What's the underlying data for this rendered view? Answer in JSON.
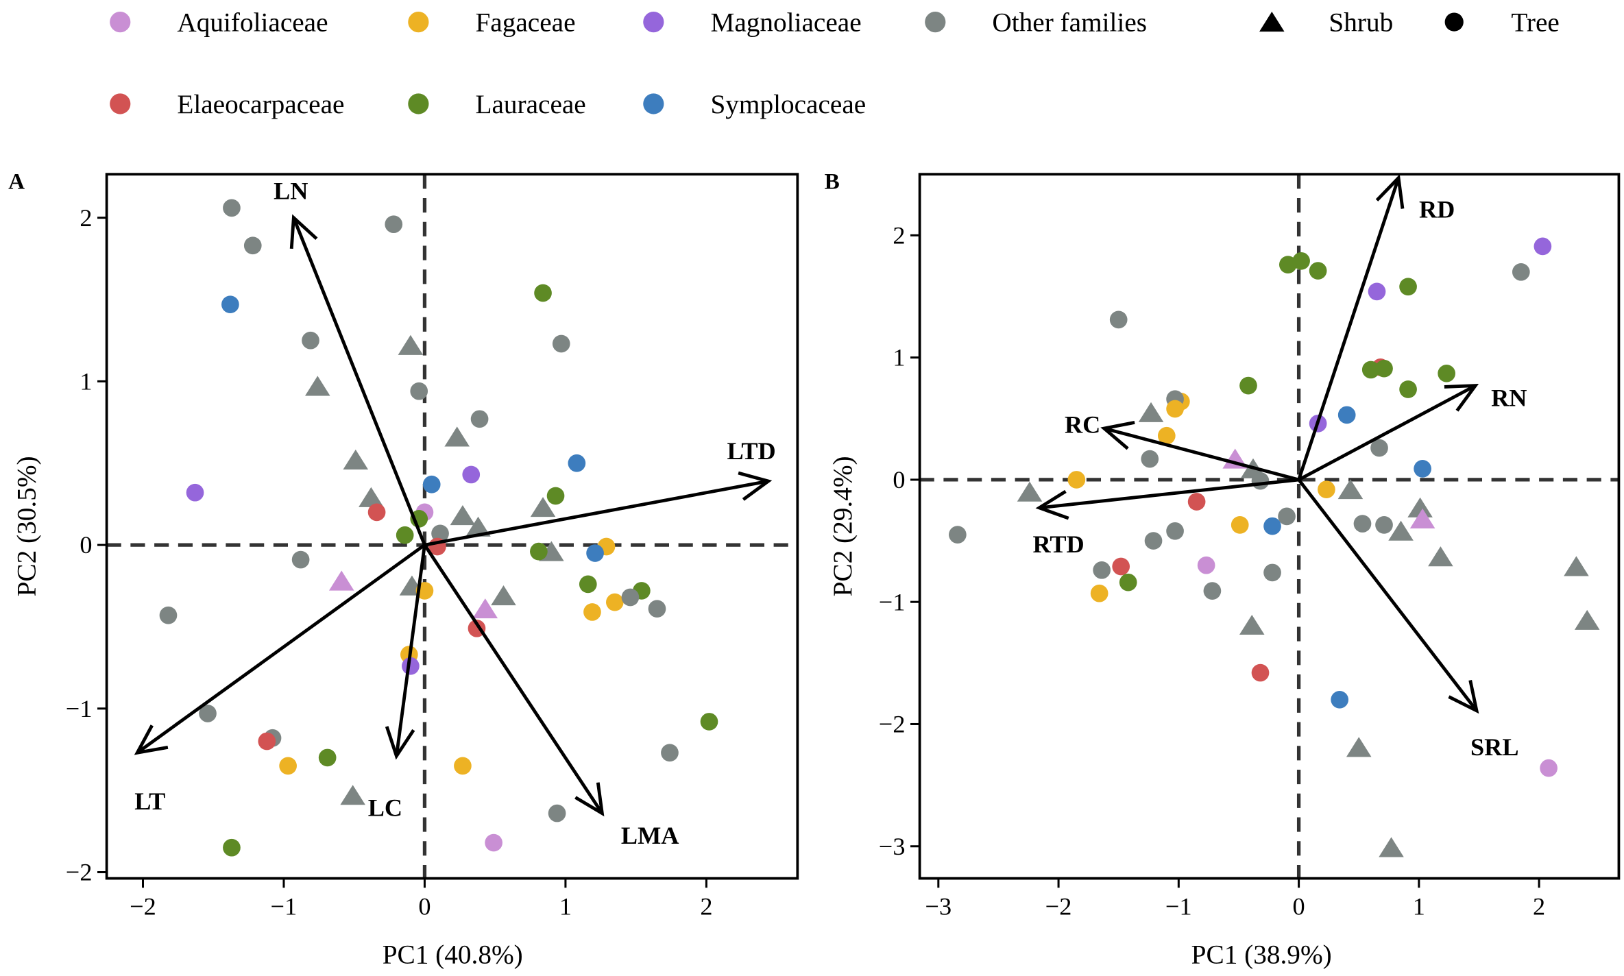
{
  "legend": {
    "families": [
      {
        "key": "Aq",
        "name": "Aquifoliaceae",
        "color": "#C98FD4"
      },
      {
        "key": "Fa",
        "name": "Fagaceae",
        "color": "#EDB224"
      },
      {
        "key": "Ma",
        "name": "Magnoliaceae",
        "color": "#9566DB"
      },
      {
        "key": "Ot",
        "name": "Other families",
        "color": "#7D8583"
      },
      {
        "key": "El",
        "name": "Elaeocarpaceae",
        "color": "#D25353"
      },
      {
        "key": "La",
        "name": "Lauraceae",
        "color": "#5E8A25"
      },
      {
        "key": "Sy",
        "name": "Symplocaceae",
        "color": "#3D7DBE"
      }
    ],
    "shapes": [
      {
        "key": "t",
        "name": "Shrub"
      },
      {
        "key": "c",
        "name": "Tree"
      }
    ]
  },
  "chart_data": [
    {
      "type": "scatter",
      "panel": "A",
      "xlabel": "PC1 (40.8%)",
      "ylabel": "PC2 (30.5%)",
      "xlim": [
        -2.3,
        2.65
      ],
      "ylim": [
        -2.05,
        2.25
      ],
      "xticks": [
        "−2",
        "−1",
        "0",
        "1",
        "2"
      ],
      "xtick_values": [
        -2,
        -1,
        0,
        1,
        2
      ],
      "yticks": [
        "−2",
        "−1",
        "0",
        "1",
        "2"
      ],
      "ytick_values": [
        -2,
        -1,
        0,
        1,
        2
      ],
      "arrows": [
        {
          "label": "LN",
          "x": -0.93,
          "y": 2.0
        },
        {
          "label": "LTD",
          "x": 2.44,
          "y": 0.39
        },
        {
          "label": "LT",
          "x": -2.04,
          "y": -1.27
        },
        {
          "label": "LC",
          "x": -0.2,
          "y": -1.29
        },
        {
          "label": "LMA",
          "x": 1.26,
          "y": -1.64
        }
      ],
      "arrow_label_pos": [
        [
          -0.95,
          2.17
        ],
        [
          2.32,
          0.58
        ],
        [
          -1.95,
          -1.56
        ],
        [
          -0.28,
          -1.6
        ],
        [
          1.6,
          -1.77
        ]
      ],
      "points": [
        [
          -1.37,
          2.06,
          "Ot",
          "c"
        ],
        [
          -1.22,
          1.83,
          "Ot",
          "c"
        ],
        [
          -1.38,
          1.47,
          "Sy",
          "c"
        ],
        [
          -0.22,
          1.96,
          "Ot",
          "c"
        ],
        [
          -0.81,
          1.25,
          "Ot",
          "c"
        ],
        [
          -0.76,
          0.97,
          "Ot",
          "t"
        ],
        [
          -0.1,
          1.22,
          "Ot",
          "t"
        ],
        [
          -0.04,
          0.94,
          "Ot",
          "c"
        ],
        [
          0.39,
          0.77,
          "Ot",
          "c"
        ],
        [
          0.84,
          1.54,
          "La",
          "c"
        ],
        [
          0.97,
          1.23,
          "Ot",
          "c"
        ],
        [
          -0.49,
          0.52,
          "Ot",
          "t"
        ],
        [
          0.23,
          0.66,
          "Ot",
          "t"
        ],
        [
          -1.63,
          0.32,
          "Ma",
          "c"
        ],
        [
          0.33,
          0.43,
          "Ma",
          "c"
        ],
        [
          0.05,
          0.37,
          "Sy",
          "c"
        ],
        [
          1.08,
          0.5,
          "Sy",
          "c"
        ],
        [
          -0.38,
          0.29,
          "Ot",
          "t"
        ],
        [
          -0.34,
          0.2,
          "El",
          "c"
        ],
        [
          0.93,
          0.3,
          "La",
          "c"
        ],
        [
          0.0,
          0.2,
          "Aq",
          "c"
        ],
        [
          -0.04,
          0.16,
          "La",
          "c"
        ],
        [
          -0.14,
          0.06,
          "La",
          "c"
        ],
        [
          0.11,
          0.07,
          "Ot",
          "c"
        ],
        [
          0.27,
          0.18,
          "Ot",
          "t"
        ],
        [
          0.38,
          0.11,
          "Ot",
          "t"
        ],
        [
          0.09,
          -0.01,
          "El",
          "c"
        ],
        [
          0.84,
          0.23,
          "Ot",
          "t"
        ],
        [
          0.9,
          -0.04,
          "Ot",
          "t"
        ],
        [
          0.81,
          -0.04,
          "La",
          "c"
        ],
        [
          1.29,
          -0.01,
          "Fa",
          "c"
        ],
        [
          1.21,
          -0.05,
          "Sy",
          "c"
        ],
        [
          -0.88,
          -0.09,
          "Ot",
          "c"
        ],
        [
          -0.59,
          -0.22,
          "Aq",
          "t"
        ],
        [
          -0.09,
          -0.25,
          "Ot",
          "t"
        ],
        [
          0.0,
          -0.28,
          "Fa",
          "c"
        ],
        [
          0.56,
          -0.31,
          "Ot",
          "t"
        ],
        [
          0.43,
          -0.39,
          "Aq",
          "t"
        ],
        [
          0.37,
          -0.51,
          "El",
          "c"
        ],
        [
          1.16,
          -0.24,
          "La",
          "c"
        ],
        [
          1.54,
          -0.28,
          "La",
          "c"
        ],
        [
          1.35,
          -0.35,
          "Fa",
          "c"
        ],
        [
          1.19,
          -0.41,
          "Fa",
          "c"
        ],
        [
          1.46,
          -0.32,
          "Ot",
          "c"
        ],
        [
          1.65,
          -0.39,
          "Ot",
          "c"
        ],
        [
          -1.82,
          -0.43,
          "Ot",
          "c"
        ],
        [
          -0.11,
          -0.67,
          "Fa",
          "c"
        ],
        [
          -0.1,
          -0.74,
          "Ma",
          "c"
        ],
        [
          -1.54,
          -1.03,
          "Ot",
          "c"
        ],
        [
          -1.08,
          -1.18,
          "Ot",
          "c"
        ],
        [
          -1.12,
          -1.2,
          "El",
          "c"
        ],
        [
          -0.97,
          -1.35,
          "Fa",
          "c"
        ],
        [
          -0.69,
          -1.3,
          "La",
          "c"
        ],
        [
          -0.51,
          -1.53,
          "Ot",
          "t"
        ],
        [
          0.27,
          -1.35,
          "Fa",
          "c"
        ],
        [
          2.02,
          -1.08,
          "La",
          "c"
        ],
        [
          1.74,
          -1.27,
          "Ot",
          "c"
        ],
        [
          0.94,
          -1.64,
          "Ot",
          "c"
        ],
        [
          0.49,
          -1.82,
          "Aq",
          "c"
        ],
        [
          -1.37,
          -1.85,
          "La",
          "c"
        ]
      ]
    },
    {
      "type": "scatter",
      "panel": "B",
      "xlabel": "PC1 (38.9%)",
      "ylabel": "PC2 (29.4%)",
      "xlim": [
        -3.15,
        2.65
      ],
      "ylim": [
        -3.25,
        2.5
      ],
      "xticks": [
        "−3",
        "−2",
        "−1",
        "0",
        "1",
        "2"
      ],
      "xtick_values": [
        -3,
        -2,
        -1,
        0,
        1,
        2
      ],
      "yticks": [
        "−3",
        "−2",
        "−1",
        "0",
        "1",
        "2"
      ],
      "ytick_values": [
        -3,
        -2,
        -1,
        0,
        1,
        2
      ],
      "arrows": [
        {
          "label": "RD",
          "x": 0.83,
          "y": 2.47
        },
        {
          "label": "RN",
          "x": 1.47,
          "y": 0.77
        },
        {
          "label": "RC",
          "x": -1.62,
          "y": 0.42
        },
        {
          "label": "RTD",
          "x": -2.16,
          "y": -0.23
        },
        {
          "label": "SRL",
          "x": 1.48,
          "y": -1.89
        }
      ],
      "arrow_label_pos": [
        [
          1.15,
          2.22
        ],
        [
          1.75,
          0.68
        ],
        [
          -1.8,
          0.46
        ],
        [
          -2.0,
          -0.52
        ],
        [
          1.63,
          -2.18
        ]
      ],
      "points": [
        [
          -0.09,
          1.76,
          "La",
          "c"
        ],
        [
          0.02,
          1.79,
          "La",
          "c"
        ],
        [
          0.16,
          1.71,
          "La",
          "c"
        ],
        [
          0.65,
          1.54,
          "Ma",
          "c"
        ],
        [
          0.91,
          1.58,
          "La",
          "c"
        ],
        [
          2.03,
          1.91,
          "Ma",
          "c"
        ],
        [
          1.85,
          1.7,
          "Ot",
          "c"
        ],
        [
          -1.5,
          1.31,
          "Ot",
          "c"
        ],
        [
          0.68,
          0.92,
          "El",
          "c"
        ],
        [
          0.6,
          0.9,
          "La",
          "c"
        ],
        [
          0.71,
          0.91,
          "La",
          "c"
        ],
        [
          1.23,
          0.87,
          "La",
          "c"
        ],
        [
          0.91,
          0.74,
          "La",
          "c"
        ],
        [
          -0.42,
          0.77,
          "La",
          "c"
        ],
        [
          -0.98,
          0.64,
          "Fa",
          "c"
        ],
        [
          -1.03,
          0.66,
          "Ot",
          "c"
        ],
        [
          -1.03,
          0.58,
          "Fa",
          "c"
        ],
        [
          -1.23,
          0.55,
          "Ot",
          "t"
        ],
        [
          -1.1,
          0.36,
          "Fa",
          "c"
        ],
        [
          0.16,
          0.46,
          "Ma",
          "c"
        ],
        [
          0.4,
          0.53,
          "Sy",
          "c"
        ],
        [
          0.67,
          0.26,
          "Ot",
          "c"
        ],
        [
          -1.24,
          0.17,
          "Ot",
          "c"
        ],
        [
          -0.53,
          0.17,
          "Aq",
          "t"
        ],
        [
          -0.38,
          0.09,
          "Ot",
          "t"
        ],
        [
          1.03,
          0.09,
          "Sy",
          "c"
        ],
        [
          -1.85,
          0.0,
          "Fa",
          "c"
        ],
        [
          -0.32,
          -0.01,
          "Ot",
          "c"
        ],
        [
          -2.24,
          -0.1,
          "Ot",
          "t"
        ],
        [
          0.23,
          -0.08,
          "Fa",
          "c"
        ],
        [
          0.43,
          -0.08,
          "Ot",
          "t"
        ],
        [
          -0.85,
          -0.18,
          "El",
          "c"
        ],
        [
          1.01,
          -0.23,
          "Ot",
          "t"
        ],
        [
          1.03,
          -0.32,
          "Aq",
          "t"
        ],
        [
          -0.1,
          -0.3,
          "Ot",
          "c"
        ],
        [
          0.53,
          -0.36,
          "Ot",
          "c"
        ],
        [
          0.71,
          -0.37,
          "Ot",
          "c"
        ],
        [
          0.85,
          -0.42,
          "Ot",
          "t"
        ],
        [
          -0.49,
          -0.37,
          "Fa",
          "c"
        ],
        [
          -0.22,
          -0.38,
          "Sy",
          "c"
        ],
        [
          -1.03,
          -0.42,
          "Ot",
          "c"
        ],
        [
          -1.21,
          -0.5,
          "Ot",
          "c"
        ],
        [
          1.18,
          -0.63,
          "Ot",
          "t"
        ],
        [
          -2.84,
          -0.45,
          "Ot",
          "c"
        ],
        [
          -1.48,
          -0.71,
          "El",
          "c"
        ],
        [
          -1.64,
          -0.74,
          "Ot",
          "c"
        ],
        [
          -0.77,
          -0.7,
          "Aq",
          "c"
        ],
        [
          -1.42,
          -0.84,
          "La",
          "c"
        ],
        [
          -1.66,
          -0.93,
          "Fa",
          "c"
        ],
        [
          -0.72,
          -0.91,
          "Ot",
          "c"
        ],
        [
          -0.22,
          -0.76,
          "Ot",
          "c"
        ],
        [
          2.31,
          -0.71,
          "Ot",
          "t"
        ],
        [
          2.4,
          -1.15,
          "Ot",
          "t"
        ],
        [
          -0.39,
          -1.19,
          "Ot",
          "t"
        ],
        [
          -0.32,
          -1.58,
          "El",
          "c"
        ],
        [
          0.34,
          -1.8,
          "Sy",
          "c"
        ],
        [
          0.5,
          -2.19,
          "Ot",
          "t"
        ],
        [
          2.08,
          -2.36,
          "Aq",
          "c"
        ],
        [
          0.77,
          -3.01,
          "Ot",
          "t"
        ]
      ]
    }
  ]
}
